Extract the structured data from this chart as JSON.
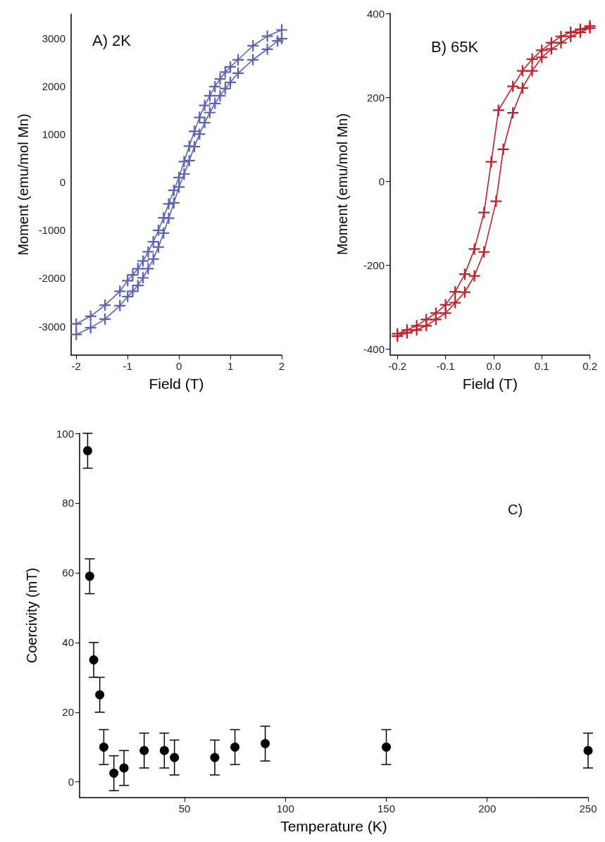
{
  "chart_data": [
    {
      "type": "line",
      "title": "A) 2K",
      "xlabel": "Field (T)",
      "ylabel": "Moment (emu/mol Mn)",
      "xlim": [
        -2.1,
        2
      ],
      "ylim": [
        -3600,
        3500
      ],
      "xticks": [
        -2,
        -1,
        0,
        1,
        2
      ],
      "yticks": [
        -3000,
        -2000,
        -1000,
        0,
        1000,
        2000,
        3000
      ],
      "grid": false,
      "marker": "cross",
      "line_style": "solid",
      "series": [
        {
          "color": "#5b63b5",
          "x": [
            -2,
            -1.72,
            -1.44,
            -1.15,
            -1,
            -0.9,
            -0.8,
            -0.7,
            -0.6,
            -0.5,
            -0.4,
            -0.3,
            -0.2,
            -0.1,
            0,
            0.1,
            0.2,
            0.3,
            0.4,
            0.5,
            0.6,
            0.7,
            0.8,
            0.9,
            1,
            1.15,
            1.44,
            1.72,
            2
          ],
          "values": [
            -2950,
            -2790,
            -2560,
            -2270,
            -2050,
            -1930,
            -1800,
            -1640,
            -1450,
            -1240,
            -1000,
            -740,
            -450,
            -170,
            100,
            430,
            750,
            1060,
            1350,
            1600,
            1800,
            1990,
            2150,
            2290,
            2400,
            2550,
            2840,
            3040,
            3170
          ]
        },
        {
          "color": "#5b63b5",
          "x": [
            -2,
            -1.72,
            -1.44,
            -1.15,
            -1,
            -0.9,
            -0.8,
            -0.7,
            -0.6,
            -0.5,
            -0.4,
            -0.3,
            -0.2,
            -0.1,
            0,
            0.1,
            0.2,
            0.3,
            0.4,
            0.5,
            0.6,
            0.7,
            0.8,
            0.9,
            1,
            1.15,
            1.44,
            1.72,
            1.92,
            2
          ],
          "values": [
            -3170,
            -3030,
            -2850,
            -2570,
            -2380,
            -2270,
            -2150,
            -1990,
            -1800,
            -1600,
            -1350,
            -1060,
            -750,
            -430,
            -100,
            170,
            450,
            740,
            1000,
            1240,
            1450,
            1640,
            1800,
            1950,
            2080,
            2270,
            2550,
            2770,
            2940,
            2990
          ]
        }
      ]
    },
    {
      "type": "line",
      "title": "B) 65K",
      "xlabel": "Field (T)",
      "ylabel": "Moment (emu/mol Mn)",
      "xlim": [
        -0.215,
        0.2
      ],
      "ylim": [
        -415,
        400
      ],
      "xticks": [
        -0.2,
        -0.1,
        {
          "value": 0,
          "label": "0.0"
        },
        0.1,
        0.2
      ],
      "yticks": [
        -400,
        -200,
        0,
        200,
        400
      ],
      "grid": false,
      "marker": "cross",
      "line_style": "solid",
      "series": [
        {
          "color": "#c0202a",
          "x": [
            -0.2,
            -0.18,
            -0.16,
            -0.14,
            -0.12,
            -0.1,
            -0.08,
            -0.06,
            -0.04,
            -0.02,
            -0.005,
            0.01,
            0.04,
            0.06,
            0.08,
            0.1,
            0.12,
            0.14,
            0.16,
            0.18,
            0.2
          ],
          "values": [
            -364,
            -355,
            -345,
            -330,
            -315,
            -295,
            -264,
            -222,
            -162,
            -75,
            46,
            169,
            226,
            263,
            291,
            312,
            330,
            345,
            355,
            362,
            370
          ]
        },
        {
          "color": "#c0202a",
          "x": [
            -0.2,
            -0.18,
            -0.16,
            -0.14,
            -0.12,
            -0.1,
            -0.08,
            -0.06,
            -0.04,
            -0.02,
            0.005,
            0.02,
            0.04,
            0.06,
            0.08,
            0.1,
            0.12,
            0.14,
            0.16,
            0.18,
            0.2
          ],
          "values": [
            -370,
            -362,
            -355,
            -345,
            -330,
            -315,
            -290,
            -265,
            -226,
            -169,
            -48,
            76,
            163,
            222,
            263,
            295,
            315,
            330,
            345,
            355,
            365
          ]
        }
      ]
    },
    {
      "type": "scatter",
      "title": "C)",
      "xlabel": "Temperature (K)",
      "ylabel": "Coercivity (mT)",
      "xlim": [
        -2,
        250
      ],
      "ylim": [
        -4.5,
        100
      ],
      "xticks": [
        50,
        100,
        150,
        200,
        250
      ],
      "yticks": [
        0,
        20,
        40,
        60,
        80,
        100
      ],
      "grid": false,
      "marker": "circle",
      "series": [
        {
          "color": "#000000",
          "x": [
            2,
            3,
            5,
            8,
            10,
            15,
            20,
            30,
            40,
            45,
            65,
            75,
            90,
            150,
            250
          ],
          "values": [
            95,
            59,
            35,
            25,
            10,
            2.5,
            4,
            9,
            9,
            7,
            7,
            10,
            11,
            10,
            9
          ],
          "errors": [
            5,
            5,
            5,
            5,
            5,
            5,
            5,
            5,
            5,
            5,
            5,
            5,
            5,
            5,
            5
          ]
        }
      ]
    }
  ]
}
